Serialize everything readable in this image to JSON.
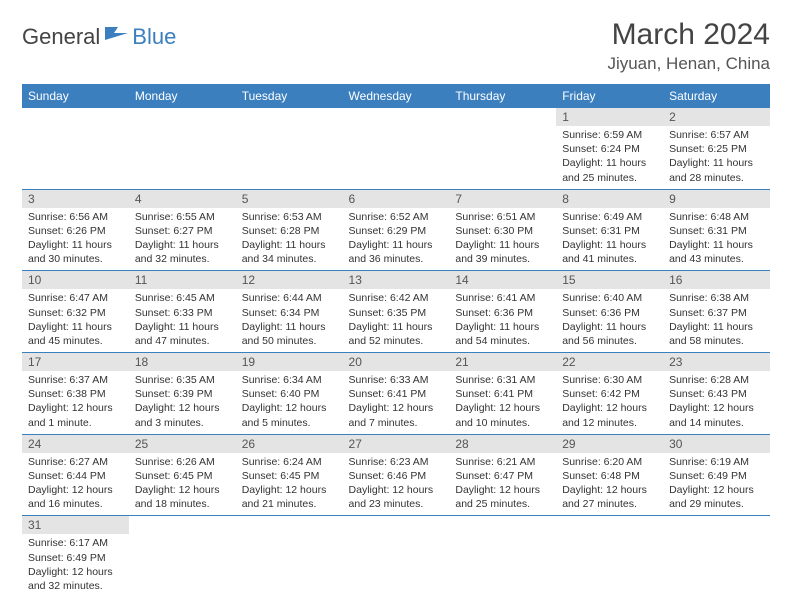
{
  "logo": {
    "general": "General",
    "blue": "Blue"
  },
  "title": "March 2024",
  "location": "Jiyuan, Henan, China",
  "colors": {
    "header_bg": "#3b7fbf",
    "header_fg": "#ffffff",
    "daynum_bg": "#e4e4e4",
    "row_border": "#3b7fbf",
    "text": "#333333"
  },
  "weekdays": [
    "Sunday",
    "Monday",
    "Tuesday",
    "Wednesday",
    "Thursday",
    "Friday",
    "Saturday"
  ],
  "weeks": [
    [
      null,
      null,
      null,
      null,
      null,
      {
        "n": "1",
        "sr": "6:59 AM",
        "ss": "6:24 PM",
        "dl": "11 hours and 25 minutes."
      },
      {
        "n": "2",
        "sr": "6:57 AM",
        "ss": "6:25 PM",
        "dl": "11 hours and 28 minutes."
      }
    ],
    [
      {
        "n": "3",
        "sr": "6:56 AM",
        "ss": "6:26 PM",
        "dl": "11 hours and 30 minutes."
      },
      {
        "n": "4",
        "sr": "6:55 AM",
        "ss": "6:27 PM",
        "dl": "11 hours and 32 minutes."
      },
      {
        "n": "5",
        "sr": "6:53 AM",
        "ss": "6:28 PM",
        "dl": "11 hours and 34 minutes."
      },
      {
        "n": "6",
        "sr": "6:52 AM",
        "ss": "6:29 PM",
        "dl": "11 hours and 36 minutes."
      },
      {
        "n": "7",
        "sr": "6:51 AM",
        "ss": "6:30 PM",
        "dl": "11 hours and 39 minutes."
      },
      {
        "n": "8",
        "sr": "6:49 AM",
        "ss": "6:31 PM",
        "dl": "11 hours and 41 minutes."
      },
      {
        "n": "9",
        "sr": "6:48 AM",
        "ss": "6:31 PM",
        "dl": "11 hours and 43 minutes."
      }
    ],
    [
      {
        "n": "10",
        "sr": "6:47 AM",
        "ss": "6:32 PM",
        "dl": "11 hours and 45 minutes."
      },
      {
        "n": "11",
        "sr": "6:45 AM",
        "ss": "6:33 PM",
        "dl": "11 hours and 47 minutes."
      },
      {
        "n": "12",
        "sr": "6:44 AM",
        "ss": "6:34 PM",
        "dl": "11 hours and 50 minutes."
      },
      {
        "n": "13",
        "sr": "6:42 AM",
        "ss": "6:35 PM",
        "dl": "11 hours and 52 minutes."
      },
      {
        "n": "14",
        "sr": "6:41 AM",
        "ss": "6:36 PM",
        "dl": "11 hours and 54 minutes."
      },
      {
        "n": "15",
        "sr": "6:40 AM",
        "ss": "6:36 PM",
        "dl": "11 hours and 56 minutes."
      },
      {
        "n": "16",
        "sr": "6:38 AM",
        "ss": "6:37 PM",
        "dl": "11 hours and 58 minutes."
      }
    ],
    [
      {
        "n": "17",
        "sr": "6:37 AM",
        "ss": "6:38 PM",
        "dl": "12 hours and 1 minute."
      },
      {
        "n": "18",
        "sr": "6:35 AM",
        "ss": "6:39 PM",
        "dl": "12 hours and 3 minutes."
      },
      {
        "n": "19",
        "sr": "6:34 AM",
        "ss": "6:40 PM",
        "dl": "12 hours and 5 minutes."
      },
      {
        "n": "20",
        "sr": "6:33 AM",
        "ss": "6:41 PM",
        "dl": "12 hours and 7 minutes."
      },
      {
        "n": "21",
        "sr": "6:31 AM",
        "ss": "6:41 PM",
        "dl": "12 hours and 10 minutes."
      },
      {
        "n": "22",
        "sr": "6:30 AM",
        "ss": "6:42 PM",
        "dl": "12 hours and 12 minutes."
      },
      {
        "n": "23",
        "sr": "6:28 AM",
        "ss": "6:43 PM",
        "dl": "12 hours and 14 minutes."
      }
    ],
    [
      {
        "n": "24",
        "sr": "6:27 AM",
        "ss": "6:44 PM",
        "dl": "12 hours and 16 minutes."
      },
      {
        "n": "25",
        "sr": "6:26 AM",
        "ss": "6:45 PM",
        "dl": "12 hours and 18 minutes."
      },
      {
        "n": "26",
        "sr": "6:24 AM",
        "ss": "6:45 PM",
        "dl": "12 hours and 21 minutes."
      },
      {
        "n": "27",
        "sr": "6:23 AM",
        "ss": "6:46 PM",
        "dl": "12 hours and 23 minutes."
      },
      {
        "n": "28",
        "sr": "6:21 AM",
        "ss": "6:47 PM",
        "dl": "12 hours and 25 minutes."
      },
      {
        "n": "29",
        "sr": "6:20 AM",
        "ss": "6:48 PM",
        "dl": "12 hours and 27 minutes."
      },
      {
        "n": "30",
        "sr": "6:19 AM",
        "ss": "6:49 PM",
        "dl": "12 hours and 29 minutes."
      }
    ],
    [
      {
        "n": "31",
        "sr": "6:17 AM",
        "ss": "6:49 PM",
        "dl": "12 hours and 32 minutes."
      },
      null,
      null,
      null,
      null,
      null,
      null
    ]
  ],
  "labels": {
    "sunrise": "Sunrise:",
    "sunset": "Sunset:",
    "daylight": "Daylight:"
  }
}
